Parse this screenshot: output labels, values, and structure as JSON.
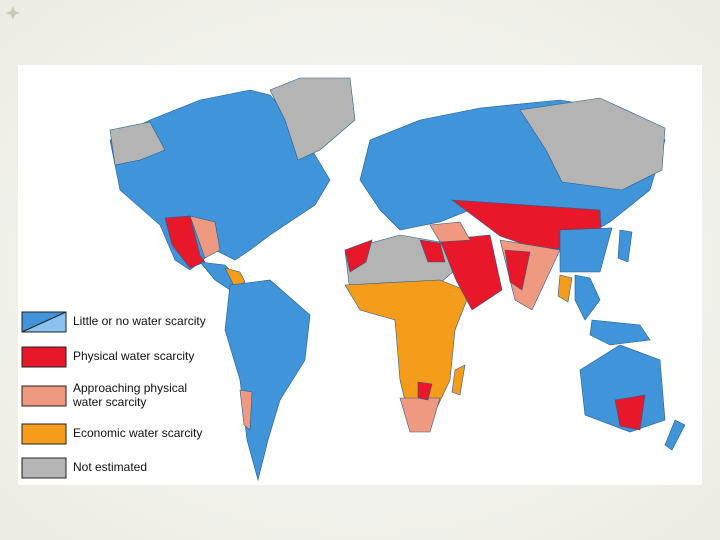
{
  "legend": {
    "items": [
      {
        "lines": [
          "Little or no water scarcity"
        ],
        "color": "#3f94da",
        "color2": "#8cc2ee"
      },
      {
        "lines": [
          "Physical water scarcity"
        ],
        "color": "#e8182a"
      },
      {
        "lines": [
          "Approaching physical",
          "water scarcity"
        ],
        "color": "#ef9a80"
      },
      {
        "lines": [
          "Economic water scarcity"
        ],
        "color": "#f59c1a"
      },
      {
        "lines": [
          "Not estimated"
        ],
        "color": "#b4b4b4"
      }
    ]
  }
}
